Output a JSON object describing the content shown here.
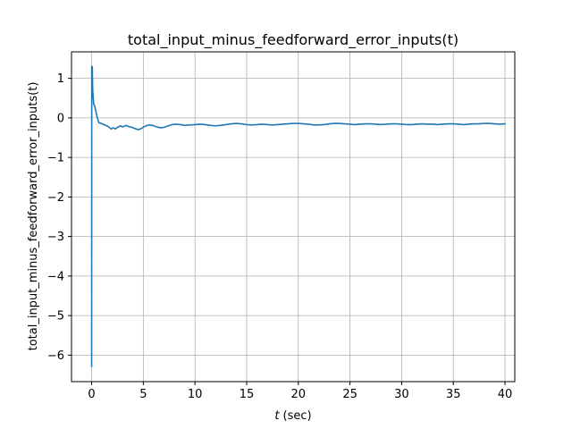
{
  "chart_data": {
    "type": "line",
    "title": "total_input_minus_feedforward_error_inputs(t)",
    "xlabel_italic": "t",
    "xlabel_unit": "(sec)",
    "ylabel": "total_input_minus_feedforward_error_inputs(t)",
    "xlim": [
      -1.95,
      40.95
    ],
    "ylim": [
      -6.67,
      1.67
    ],
    "xticks": [
      0,
      5,
      10,
      15,
      20,
      25,
      30,
      35,
      40
    ],
    "yticks": [
      -6,
      -5,
      -4,
      -3,
      -2,
      -1,
      0,
      1
    ],
    "xtick_labels": [
      "0",
      "5",
      "10",
      "15",
      "20",
      "25",
      "30",
      "35",
      "40"
    ],
    "ytick_labels": [
      "−6",
      "−5",
      "−4",
      "−3",
      "−2",
      "−1",
      "0",
      "1"
    ],
    "grid": true,
    "series": [
      {
        "color": "#1f77b4",
        "x": [
          0,
          0.01,
          0.03,
          0.06,
          0.1,
          0.2,
          0.3,
          0.5,
          0.7,
          1.0,
          1.3,
          1.6,
          1.9,
          2.1,
          2.3,
          2.5,
          2.8,
          3.0,
          3.3,
          3.6,
          3.9,
          4.2,
          4.5,
          4.8,
          5.1,
          5.5,
          5.9,
          6.3,
          6.7,
          7.0,
          7.4,
          7.8,
          8.2,
          8.6,
          9.0,
          9.5,
          10,
          10.5,
          11,
          11.5,
          12,
          12.5,
          13,
          13.5,
          14,
          14.5,
          15,
          15.5,
          16,
          16.5,
          17,
          17.5,
          18,
          18.5,
          19,
          19.5,
          20,
          20.5,
          21,
          21.5,
          22,
          22.5,
          23,
          23.5,
          24,
          24.5,
          25,
          25.5,
          26,
          26.5,
          27,
          27.5,
          28,
          28.5,
          29,
          29.5,
          30,
          30.5,
          31,
          31.5,
          32,
          32.5,
          33,
          33.5,
          34,
          34.5,
          35,
          35.5,
          36,
          36.5,
          37,
          37.5,
          38,
          38.5,
          39,
          39.5,
          40
        ],
        "y": [
          -6.28,
          1.3,
          0.5,
          1.3,
          0.7,
          0.35,
          0.3,
          0.05,
          -0.12,
          -0.15,
          -0.18,
          -0.22,
          -0.28,
          -0.25,
          -0.28,
          -0.24,
          -0.2,
          -0.23,
          -0.19,
          -0.22,
          -0.24,
          -0.27,
          -0.3,
          -0.27,
          -0.22,
          -0.18,
          -0.19,
          -0.23,
          -0.25,
          -0.24,
          -0.2,
          -0.17,
          -0.16,
          -0.17,
          -0.19,
          -0.18,
          -0.17,
          -0.16,
          -0.17,
          -0.19,
          -0.2,
          -0.19,
          -0.17,
          -0.15,
          -0.14,
          -0.15,
          -0.17,
          -0.18,
          -0.17,
          -0.16,
          -0.17,
          -0.18,
          -0.17,
          -0.16,
          -0.15,
          -0.14,
          -0.14,
          -0.15,
          -0.16,
          -0.18,
          -0.18,
          -0.17,
          -0.15,
          -0.14,
          -0.14,
          -0.15,
          -0.16,
          -0.17,
          -0.16,
          -0.15,
          -0.15,
          -0.16,
          -0.17,
          -0.16,
          -0.15,
          -0.15,
          -0.16,
          -0.17,
          -0.17,
          -0.16,
          -0.15,
          -0.16,
          -0.16,
          -0.17,
          -0.16,
          -0.15,
          -0.15,
          -0.16,
          -0.17,
          -0.16,
          -0.15,
          -0.15,
          -0.14,
          -0.14,
          -0.15,
          -0.16,
          -0.15
        ]
      }
    ]
  }
}
